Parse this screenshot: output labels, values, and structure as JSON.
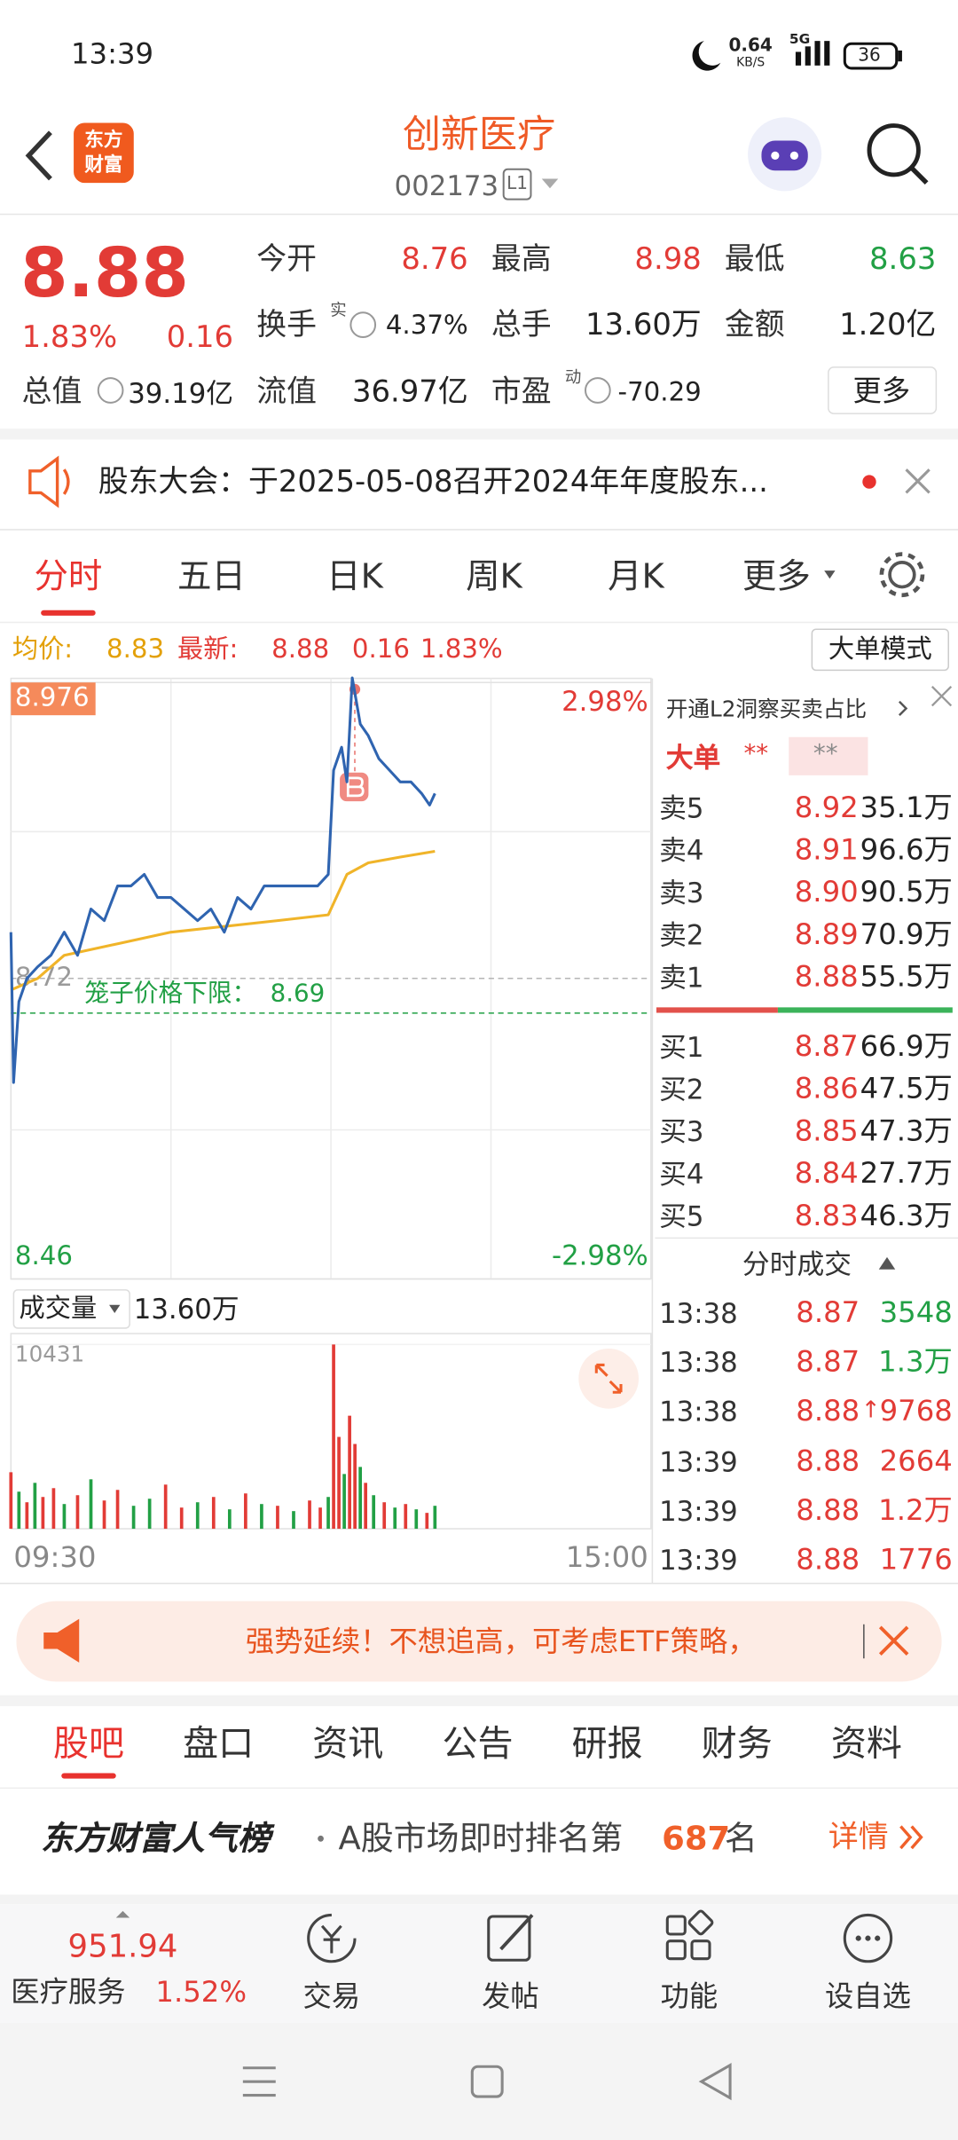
{
  "status_bar": {
    "time": "13:39",
    "speed": "0.64",
    "speed_unit": "KB/S",
    "network": "5G",
    "battery": "36"
  },
  "header": {
    "logo_top": "东方",
    "logo_bottom": "财富",
    "title": "创新医疗",
    "code": "002173",
    "level": "L1"
  },
  "quote": {
    "price": "8.88",
    "change_pct": "1.83%",
    "change": "0.16",
    "open_label": "今开",
    "open": "8.76",
    "high_label": "最高",
    "high": "8.98",
    "low_label": "最低",
    "low": "8.63",
    "turnover_label": "换手",
    "turnover_badge": "实",
    "turnover": "4.37%",
    "volume_label": "总手",
    "volume": "13.60万",
    "amount_label": "金额",
    "amount": "1.20亿",
    "mcap_label": "总值",
    "mcap": "39.19亿",
    "float_label": "流值",
    "float": "36.97亿",
    "pe_label": "市盈",
    "pe_badge": "动",
    "pe": "-70.29",
    "more": "更多"
  },
  "notice": {
    "text": "股东大会：于2025-05-08召开2024年年度股东..."
  },
  "tabs": [
    "分时",
    "五日",
    "日K",
    "周K",
    "月K",
    "更多"
  ],
  "summary": {
    "avg_label": "均价:",
    "avg": "8.83",
    "last_label": "最新:",
    "last": "8.88",
    "change": "0.16",
    "change_pct": "1.83%",
    "mode": "大单模式"
  },
  "chart_data": [
    {
      "type": "line",
      "xlim": [
        0,
        240
      ],
      "ylim": [
        8.46,
        8.976
      ],
      "yticks": [
        8.46,
        8.72,
        8.976
      ],
      "y2lim": [
        -2.98,
        2.98
      ],
      "y2ticks": [
        {
          "value": -2.98,
          "label": "-2.98%"
        },
        {
          "value": 2.98,
          "label": "2.98%"
        }
      ],
      "series": [
        {
          "color": "#2f64b0",
          "x": [
            0,
            1,
            3,
            6,
            10,
            15,
            20,
            25,
            30,
            35,
            40,
            45,
            50,
            55,
            60,
            65,
            70,
            75,
            80,
            85,
            90,
            95,
            100,
            105,
            110,
            115,
            119,
            121,
            124,
            126,
            128,
            131,
            134,
            138,
            142,
            146,
            150,
            154,
            157,
            159
          ],
          "values": [
            8.76,
            8.63,
            8.7,
            8.72,
            8.73,
            8.74,
            8.76,
            8.74,
            8.78,
            8.77,
            8.8,
            8.8,
            8.81,
            8.79,
            8.79,
            8.78,
            8.77,
            8.78,
            8.76,
            8.79,
            8.78,
            8.8,
            8.8,
            8.8,
            8.8,
            8.8,
            8.81,
            8.9,
            8.92,
            8.89,
            8.98,
            8.94,
            8.93,
            8.91,
            8.9,
            8.89,
            8.89,
            8.88,
            8.87,
            8.88
          ]
        },
        {
          "color": "#f0b429",
          "x": [
            0,
            10,
            20,
            40,
            60,
            80,
            100,
            119,
            122,
            126,
            134,
            146,
            159
          ],
          "values": [
            8.71,
            8.72,
            8.74,
            8.75,
            8.76,
            8.765,
            8.77,
            8.775,
            8.79,
            8.81,
            8.82,
            8.825,
            8.83
          ]
        }
      ],
      "annotations": [
        {
          "text": "笼子价格下限：",
          "value": 8.69,
          "color": "#22a045"
        }
      ]
    },
    {
      "type": "bar",
      "title": "成交量",
      "total": "13.60万",
      "xlim": [
        0,
        240
      ],
      "xticks": [
        {
          "value": 0,
          "label": "09:30"
        },
        {
          "value": 240,
          "label": "15:00"
        }
      ],
      "ylim": [
        0,
        10431
      ],
      "yticks": [
        10431
      ],
      "x": [
        0,
        3,
        6,
        9,
        12,
        16,
        20,
        25,
        30,
        35,
        40,
        46,
        52,
        58,
        64,
        70,
        76,
        82,
        88,
        94,
        100,
        106,
        112,
        116,
        119,
        121,
        123,
        125,
        127,
        129,
        131,
        133,
        136,
        140,
        144,
        148,
        152,
        156,
        159
      ],
      "values": [
        3200,
        2100,
        1500,
        2600,
        1800,
        2300,
        1400,
        1900,
        2800,
        1600,
        2200,
        1300,
        1700,
        2500,
        1200,
        1500,
        1800,
        1100,
        2000,
        1400,
        1300,
        1000,
        1600,
        1200,
        1800,
        10431,
        5200,
        3100,
        6400,
        4800,
        3500,
        2600,
        1900,
        1500,
        1200,
        1400,
        1100,
        900,
        1300
      ],
      "colors": [
        "#e23b36",
        "#22a045",
        "#e23b36",
        "#22a045",
        "#e23b36",
        "#e23b36",
        "#22a045",
        "#e23b36",
        "#22a045",
        "#e23b36",
        "#e23b36",
        "#22a045",
        "#22a045",
        "#e23b36",
        "#e23b36",
        "#22a045",
        "#e23b36",
        "#22a045",
        "#e23b36",
        "#22a045",
        "#e23b36",
        "#22a045",
        "#e23b36",
        "#e23b36",
        "#22a045",
        "#e23b36",
        "#e23b36",
        "#22a045",
        "#e23b36",
        "#e23b36",
        "#22a045",
        "#e23b36",
        "#22a045",
        "#e23b36",
        "#22a045",
        "#e23b36",
        "#22a045",
        "#e23b36",
        "#22a045"
      ]
    }
  ],
  "order_panel": {
    "promo": "开通L2洞察买卖占比",
    "big_label": "大单",
    "big_buy": "**",
    "big_sell": "**",
    "asks": [
      [
        "卖5",
        "8.92",
        "35.1万"
      ],
      [
        "卖4",
        "8.91",
        "96.6万"
      ],
      [
        "卖3",
        "8.90",
        "90.5万"
      ],
      [
        "卖2",
        "8.89",
        "70.9万"
      ],
      [
        "卖1",
        "8.88",
        "55.5万"
      ]
    ],
    "bids": [
      [
        "买1",
        "8.87",
        "66.9万"
      ],
      [
        "买2",
        "8.86",
        "47.5万"
      ],
      [
        "买3",
        "8.85",
        "47.3万"
      ],
      [
        "买4",
        "8.84",
        "27.7万"
      ],
      [
        "买5",
        "8.83",
        "46.3万"
      ]
    ],
    "trades_title": "分时成交",
    "trades": [
      {
        "time": "13:38",
        "price": "8.87",
        "volume": "3548",
        "color": "#22a045"
      },
      {
        "time": "13:38",
        "price": "8.87",
        "volume": "1.3万",
        "color": "#22a045"
      },
      {
        "time": "13:38",
        "price": "8.88",
        "flag": "↑",
        "volume": "9768",
        "color": "#e23b36"
      },
      {
        "time": "13:39",
        "price": "8.88",
        "volume": "2664",
        "color": "#e23b36"
      },
      {
        "time": "13:39",
        "price": "8.88",
        "volume": "1.2万",
        "color": "#e23b36"
      },
      {
        "time": "13:39",
        "price": "8.88",
        "volume": "1776",
        "color": "#e23b36"
      }
    ]
  },
  "banner": {
    "text": "强势延续！不想追高，可考虑ETF策略，"
  },
  "sections": [
    "股吧",
    "盘口",
    "资讯",
    "公告",
    "研报",
    "财务",
    "资料"
  ],
  "ranking": {
    "title": "东方财富人气榜",
    "text": "A股市场即时排名第",
    "rank": "687",
    "suffix": "名",
    "detail": "详情"
  },
  "toolbar": {
    "index_value": "951.94",
    "index_name": "医疗服务",
    "index_change": "1.52%",
    "items": [
      "交易",
      "发帖",
      "功能",
      "设自选"
    ]
  }
}
